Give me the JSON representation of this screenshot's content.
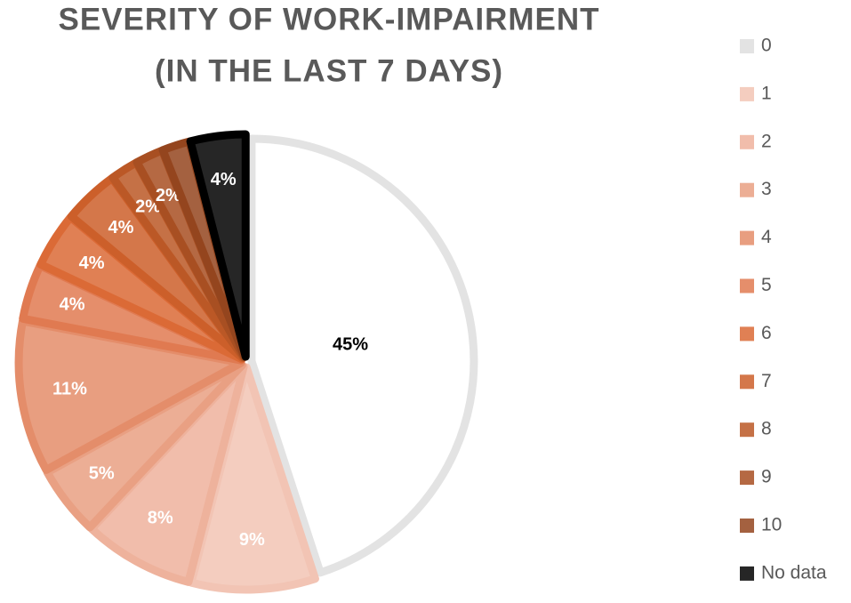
{
  "chart_data": {
    "type": "pie",
    "title": [
      "SEVERITY OF WORK-IMPAIRMENT",
      "(IN THE LAST 7 DAYS)"
    ],
    "categories": [
      "0",
      "1",
      "2",
      "3",
      "4",
      "5",
      "6",
      "7",
      "8",
      "9",
      "10",
      "No data"
    ],
    "values": [
      45,
      9,
      8,
      5,
      11,
      4,
      4,
      4,
      2,
      2,
      2,
      4
    ],
    "value_labels": [
      "45%",
      "9%",
      "8%",
      "5%",
      "11%",
      "4%",
      "4%",
      "4%",
      "2%",
      "2%",
      null,
      "4%"
    ],
    "colors": [
      "#e3e3e3",
      "#f2c4b4",
      "#eeb29c",
      "#e9a083",
      "#e48d6a",
      "#e07a51",
      "#db6a36",
      "#cc5f2a",
      "#bb5826",
      "#a84f22",
      "#94451e",
      "#000000"
    ],
    "legend": "right"
  }
}
